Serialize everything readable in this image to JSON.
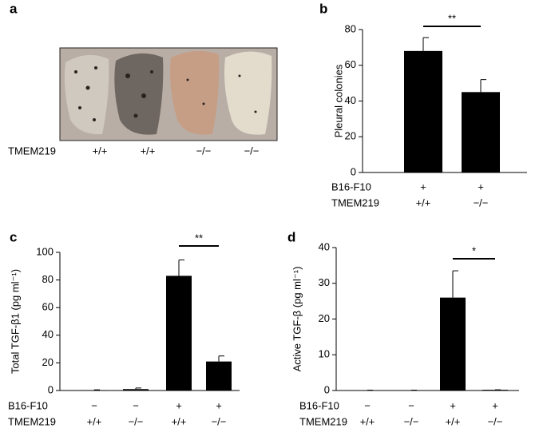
{
  "image_panel": {
    "panel_label": "a",
    "row_name": "TMEM219",
    "genotypes": [
      "+/+",
      "+/+",
      "−/−",
      "−/−"
    ]
  },
  "chart_data": [
    {
      "type": "bar",
      "panel_label": "b",
      "ylabel": "Pleural colonies",
      "color": "#000000",
      "values": [
        68,
        45
      ],
      "errors": [
        7.5,
        7
      ],
      "ylim": [
        0,
        80
      ],
      "yticks": [
        0,
        20,
        40,
        60,
        80
      ],
      "rows": [
        {
          "name": "B16-F10",
          "labels": [
            "+",
            "+"
          ]
        },
        {
          "name": "TMEM219",
          "labels": [
            "+/+",
            "−/−"
          ]
        }
      ],
      "annotation": "**"
    },
    {
      "type": "bar",
      "panel_label": "c",
      "ylabel": "Total TGF-β1 (pg ml⁻¹)",
      "color": "#000000",
      "values": [
        0.3,
        1,
        83,
        21
      ],
      "errors": [
        0.2,
        0.8,
        11.5,
        4
      ],
      "ylim": [
        0,
        100
      ],
      "yticks": [
        0,
        20,
        40,
        60,
        80,
        100
      ],
      "rows": [
        {
          "name": "B16-F10",
          "labels": [
            "−",
            "−",
            "+",
            "+"
          ]
        },
        {
          "name": "TMEM219",
          "labels": [
            "+/+",
            "−/−",
            "+/+",
            "−/−"
          ]
        }
      ],
      "annotation": "**"
    },
    {
      "type": "bar",
      "panel_label": "d",
      "ylabel": "Active TGF-β (pg ml⁻¹)",
      "color": "#000000",
      "values": [
        0.1,
        0.1,
        26,
        0.2
      ],
      "errors": [
        0,
        0,
        7.5,
        0
      ],
      "ylim": [
        0,
        40
      ],
      "yticks": [
        0,
        10,
        20,
        30,
        40
      ],
      "rows": [
        {
          "name": "B16-F10",
          "labels": [
            "−",
            "−",
            "+",
            "+"
          ]
        },
        {
          "name": "TMEM219",
          "labels": [
            "+/+",
            "−/−",
            "+/+",
            "−/−"
          ]
        }
      ],
      "annotation": "*"
    }
  ]
}
